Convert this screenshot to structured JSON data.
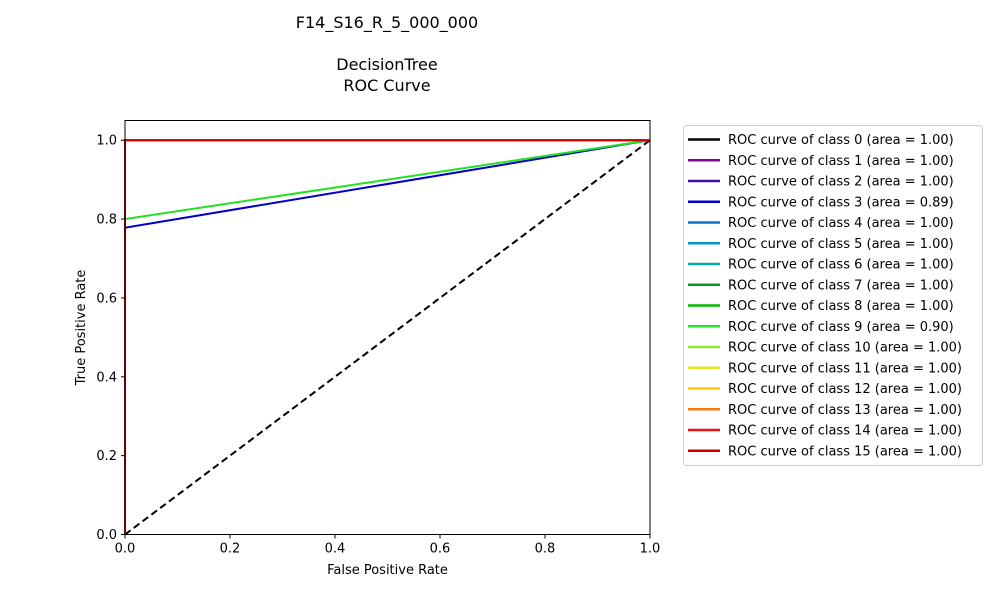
{
  "chart_data": {
    "type": "line",
    "title_lines": [
      "F14_S16_R_5_000_000",
      "",
      "DecisionTree",
      "ROC Curve"
    ],
    "xlabel": "False Positive Rate",
    "ylabel": "True Positive Rate",
    "xlim": [
      0.0,
      1.0
    ],
    "ylim": [
      0.0,
      1.05
    ],
    "xticks": [
      "0.0",
      "0.2",
      "0.4",
      "0.6",
      "0.8",
      "1.0"
    ],
    "yticks": [
      "0.0",
      "0.2",
      "0.4",
      "0.6",
      "0.8",
      "1.0"
    ],
    "grid": false,
    "legend_position": "outside-right",
    "diagonal": {
      "x": [
        0,
        1
      ],
      "y": [
        0,
        1
      ],
      "color": "#000000",
      "style": "dashed"
    },
    "series": [
      {
        "name": "ROC curve of class 0 (area = 1.00)",
        "color": "#000000",
        "x": [
          0,
          0,
          1
        ],
        "y": [
          0,
          1,
          1
        ]
      },
      {
        "name": "ROC curve of class 1 (area = 1.00)",
        "color": "#7a0a8c",
        "x": [
          0,
          0,
          1
        ],
        "y": [
          0,
          1,
          1
        ]
      },
      {
        "name": "ROC curve of class 2 (area = 1.00)",
        "color": "#4b0aa6",
        "x": [
          0,
          0,
          1
        ],
        "y": [
          0,
          1,
          1
        ]
      },
      {
        "name": "ROC curve of class 3 (area = 0.89)",
        "color": "#0000c8",
        "x": [
          0,
          0,
          1
        ],
        "y": [
          0,
          0.778,
          1
        ]
      },
      {
        "name": "ROC curve of class 4 (area = 1.00)",
        "color": "#0078d2",
        "x": [
          0,
          0,
          1
        ],
        "y": [
          0,
          1,
          1
        ]
      },
      {
        "name": "ROC curve of class 5 (area = 1.00)",
        "color": "#0099c8",
        "x": [
          0,
          0,
          1
        ],
        "y": [
          0,
          1,
          1
        ]
      },
      {
        "name": "ROC curve of class 6 (area = 1.00)",
        "color": "#00aaa0",
        "x": [
          0,
          0,
          1
        ],
        "y": [
          0,
          1,
          1
        ]
      },
      {
        "name": "ROC curve of class 7 (area = 1.00)",
        "color": "#009a28",
        "x": [
          0,
          0,
          1
        ],
        "y": [
          0,
          1,
          1
        ]
      },
      {
        "name": "ROC curve of class 8 (area = 1.00)",
        "color": "#00bb00",
        "x": [
          0,
          0,
          1
        ],
        "y": [
          0,
          1,
          1
        ]
      },
      {
        "name": "ROC curve of class 9 (area = 0.90)",
        "color": "#22e022",
        "x": [
          0,
          0,
          1
        ],
        "y": [
          0,
          0.8,
          1
        ]
      },
      {
        "name": "ROC curve of class 10 (area = 1.00)",
        "color": "#88ee22",
        "x": [
          0,
          0,
          1
        ],
        "y": [
          0,
          1,
          1
        ]
      },
      {
        "name": "ROC curve of class 11 (area = 1.00)",
        "color": "#e6e622",
        "x": [
          0,
          0,
          1
        ],
        "y": [
          0,
          1,
          1
        ]
      },
      {
        "name": "ROC curve of class 12 (area = 1.00)",
        "color": "#ffcc00",
        "x": [
          0,
          0,
          1
        ],
        "y": [
          0,
          1,
          1
        ]
      },
      {
        "name": "ROC curve of class 13 (area = 1.00)",
        "color": "#ff7711",
        "x": [
          0,
          0,
          1
        ],
        "y": [
          0,
          1,
          1
        ]
      },
      {
        "name": "ROC curve of class 14 (area = 1.00)",
        "color": "#ee1111",
        "x": [
          0,
          0,
          1
        ],
        "y": [
          0,
          1,
          1
        ]
      },
      {
        "name": "ROC curve of class 15 (area = 1.00)",
        "color": "#cc0000",
        "x": [
          0,
          0,
          1
        ],
        "y": [
          0,
          1,
          1
        ]
      }
    ]
  }
}
